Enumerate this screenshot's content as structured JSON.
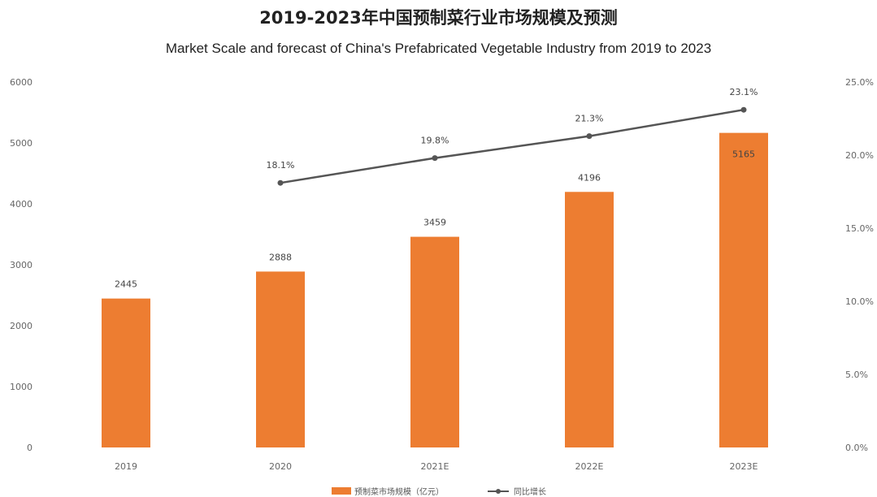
{
  "chart_data": {
    "type": "bar",
    "title": "2019-2023年中国预制菜行业市场规模及预测",
    "subtitle": "Market Scale and forecast of China's Prefabricated Vegetable Industry from 2019 to 2023",
    "categories": [
      "2019",
      "2020",
      "2021E",
      "2022E",
      "2023E"
    ],
    "series": [
      {
        "name": "预制菜市场规模（亿元）",
        "type": "bar",
        "axis": "left",
        "values": [
          2445,
          2888,
          3459,
          4196,
          5165
        ],
        "value_labels": [
          "2445",
          "2888",
          "3459",
          "4196",
          "5165"
        ],
        "color": "#ED7D31"
      },
      {
        "name": "同比增长",
        "type": "line",
        "axis": "right",
        "values": [
          null,
          18.1,
          19.8,
          21.3,
          23.1
        ],
        "value_labels": [
          "",
          "18.1%",
          "19.8%",
          "21.3%",
          "23.1%"
        ],
        "color": "#555555"
      }
    ],
    "ylim_left": [
      0,
      6000
    ],
    "ylim_right": [
      0,
      25
    ],
    "yticks_left": [
      "0",
      "1000",
      "2000",
      "3000",
      "4000",
      "5000",
      "6000"
    ],
    "yticks_right": [
      "0.0%",
      "5.0%",
      "10.0%",
      "15.0%",
      "20.0%",
      "25.0%"
    ],
    "legend_position": "bottom-center",
    "grid": false
  }
}
